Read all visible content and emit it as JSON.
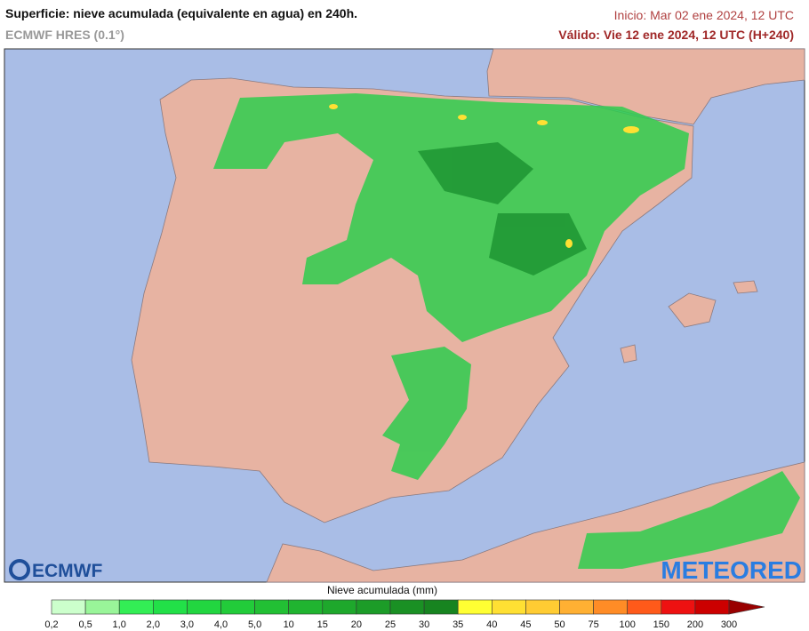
{
  "header": {
    "title": "Superficie: nieve acumulada (equivalente en agua) en 240h.",
    "model": "ECMWF HRES (0.1°)",
    "init": "Inicio: Mar 02 ene 2024, 12 UTC",
    "valid": "Válido: Vie 12 ene 2024, 12 UTC (H+240)"
  },
  "logos": {
    "left": "ECMWF",
    "right": "METEORED"
  },
  "colorbar": {
    "title": "Nieve acumulada (mm)",
    "labels": [
      "0,2",
      "0,5",
      "1,0",
      "2,0",
      "3,0",
      "4,0",
      "5,0",
      "10",
      "15",
      "20",
      "25",
      "30",
      "35",
      "40",
      "45",
      "50",
      "75",
      "100",
      "150",
      "200",
      "300"
    ],
    "colors": [
      "#ccffcc",
      "#99f599",
      "#33ee55",
      "#22e048",
      "#22d640",
      "#22cc3a",
      "#22c034",
      "#20b430",
      "#1ea82c",
      "#1c9c28",
      "#1a9024",
      "#178420",
      "#ffff33",
      "#ffe033",
      "#ffcc33",
      "#ffb033",
      "#ff8c26",
      "#ff5a1a",
      "#ee1111",
      "#cc0000"
    ],
    "arrow_color": "#990000"
  }
}
